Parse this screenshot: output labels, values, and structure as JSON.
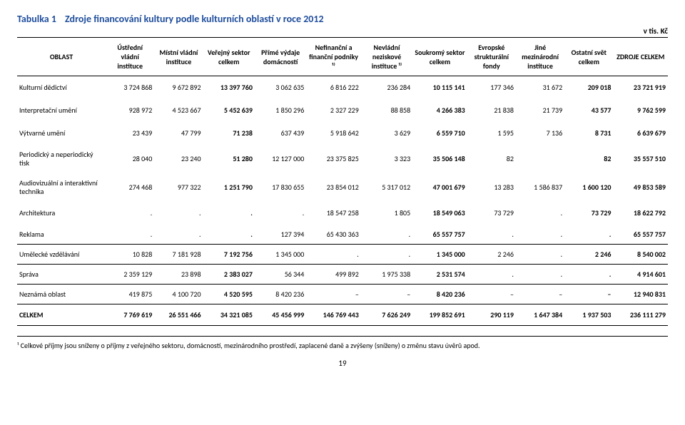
{
  "title": {
    "label": "Tabulka 1",
    "text": "Zdroje financování kultury podle kulturních oblastí v roce 2012"
  },
  "unit": "v tis. Kč",
  "columns": [
    "OBLAST",
    "Ústřední vládní instituce",
    "Místní vládní instituce",
    "Veřejný sektor celkem",
    "Přímé výdaje domácností",
    "Nefinanční a finanční podniky ¹⁾",
    "Nevládní neziskové instituce ¹⁾",
    "Soukromý sektor celkem",
    "Evropské strukturální fondy",
    "Jiné mezinárodní instituce",
    "Ostatní svět celkem",
    "ZDROJE CELKEM"
  ],
  "rows": [
    {
      "cls": "cat",
      "label": "Kulturní dědictví",
      "cells": [
        "3 724 868",
        "9 672 892",
        "13 397 760",
        "3 062 635",
        "6 816 222",
        "236 284",
        "10 115 141",
        "177 346",
        "31 672",
        "209 018",
        "23 721 919"
      ]
    },
    {
      "cls": "cat",
      "label": "Interpretační umění",
      "cells": [
        "928 972",
        "4 523 667",
        "5 452 639",
        "1 850 296",
        "2 327 229",
        "88 858",
        "4 266 383",
        "21 838",
        "21 739",
        "43 577",
        "9 762 599"
      ]
    },
    {
      "cls": "cat",
      "label": "Výtvarné umění",
      "cells": [
        "23 439",
        "47 799",
        "71 238",
        "637 439",
        "5 918 642",
        "3 629",
        "6 559 710",
        "1 595",
        "7 136",
        "8 731",
        "6 639 679"
      ]
    },
    {
      "cls": "cat tall",
      "label": "Periodický a neperiodický tisk",
      "cells": [
        "28 040",
        "23 240",
        "51 280",
        "12 127 000",
        "23 375 825",
        "3 323",
        "35 506 148",
        "82",
        "",
        "82",
        "35 557 510"
      ]
    },
    {
      "cls": "cat tall",
      "label": "Audiovizuální a interaktivní technika",
      "cells": [
        "274 468",
        "977 322",
        "1 251 790",
        "17 830 655",
        "23 854 012",
        "5 317 012",
        "47 001 679",
        "13 283",
        "1 586 837",
        "1 600 120",
        "49 853 589"
      ]
    },
    {
      "cls": "cat",
      "label": "Architektura",
      "cells": [
        ".",
        ".",
        ".",
        ".",
        "18 547 258",
        "1 805",
        "18 549 063",
        "73 729",
        ".",
        "73 729",
        "18 622 792"
      ]
    },
    {
      "cls": "section",
      "label": "Reklama",
      "cells": [
        ".",
        ".",
        ".",
        "127 394",
        "65 430 363",
        ".",
        "65 557 757",
        ".",
        ".",
        ".",
        "65 557 757"
      ]
    },
    {
      "cls": "section",
      "label": "Umělecké vzdělávání",
      "cells": [
        "10 828",
        "7 181 928",
        "7 192 756",
        "1 345 000",
        ".",
        ".",
        "1 345 000",
        "2 246",
        ".",
        "2 246",
        "8 540 002"
      ]
    },
    {
      "cls": "section",
      "label": "Správa",
      "cells": [
        "2 359 129",
        "23 898",
        "2 383 027",
        "56 344",
        "499 892",
        "1 975 338",
        "2 531 574",
        ".",
        ".",
        ".",
        "4 914 601"
      ]
    },
    {
      "cls": "section",
      "label": "Neznámá oblast",
      "cells": [
        "419 875",
        "4 100 720",
        "4 520 595",
        "8 420 236",
        "–",
        "–",
        "8 420 236",
        "–",
        "–",
        "–",
        "12 940 831"
      ]
    },
    {
      "cls": "section totals",
      "label": "CELKEM",
      "cells": [
        "7 769 619",
        "26 551 466",
        "34 321 085",
        "45 456 999",
        "146 769 443",
        "7 626 249",
        "199 852 691",
        "290 119",
        "1 647 384",
        "1 937 503",
        "236 111 279"
      ]
    }
  ],
  "boldCols": [
    3,
    7,
    10,
    11
  ],
  "colWidths": [
    "120px",
    "66px",
    "66px",
    "70px",
    "70px",
    "74px",
    "70px",
    "74px",
    "66px",
    "66px",
    "66px",
    "74px"
  ],
  "footnote": "¹ Celkové příjmy jsou sníženy o příjmy z veřejného sektoru, domácností, mezinárodního prostředí, zaplacené daně a zvýšeny (sníženy) o změnu stavu úvěrů apod.",
  "pagenum": "19"
}
